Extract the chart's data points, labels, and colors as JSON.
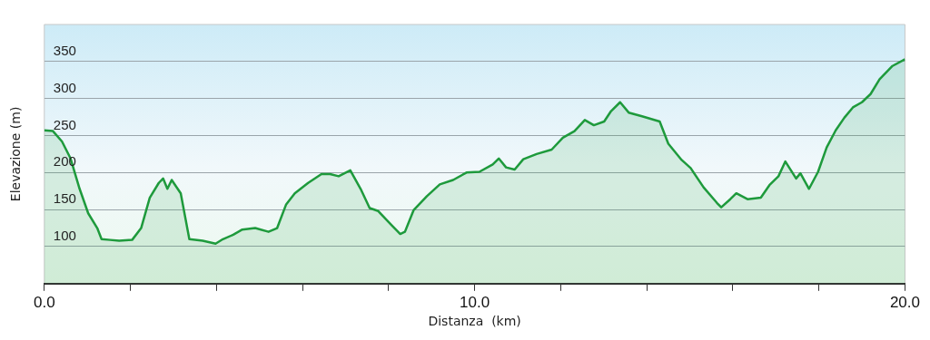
{
  "chart_data": {
    "type": "area",
    "xlabel": "Distanza  (km)",
    "ylabel": "Elevazione (m)",
    "x": [
      0,
      0.2,
      0.41,
      0.61,
      0.82,
      1.02,
      1.23,
      1.33,
      1.53,
      1.74,
      2.04,
      2.25,
      2.45,
      2.66,
      2.76,
      2.86,
      2.96,
      3.17,
      3.37,
      3.68,
      3.98,
      4.15,
      4.39,
      4.6,
      4.9,
      5.21,
      5.41,
      5.62,
      5.82,
      6.13,
      6.44,
      6.64,
      6.84,
      7.11,
      7.35,
      7.56,
      7.76,
      8.07,
      8.27,
      8.38,
      8.58,
      8.89,
      9.19,
      9.5,
      9.81,
      10.11,
      10.42,
      10.56,
      10.73,
      10.93,
      11.13,
      11.44,
      11.79,
      12.05,
      12.32,
      12.56,
      12.77,
      13.01,
      13.17,
      13.38,
      13.58,
      13.89,
      14.3,
      14.5,
      14.81,
      15.02,
      15.32,
      15.63,
      15.73,
      15.94,
      16.08,
      16.34,
      16.65,
      16.85,
      17.06,
      17.22,
      17.47,
      17.57,
      17.77,
      17.98,
      18.18,
      18.39,
      18.59,
      18.79,
      19.0,
      19.2,
      19.41,
      19.71,
      20.0
    ],
    "series": [
      {
        "color": "#1e9a3c",
        "values": [
          257,
          256,
          242,
          219,
          178,
          145,
          125,
          110,
          109,
          108,
          109,
          125,
          166,
          186,
          192,
          178,
          190,
          172,
          110,
          108,
          104,
          110,
          116,
          123,
          125,
          120,
          125,
          157,
          172,
          186,
          198,
          198,
          195,
          203,
          178,
          152,
          148,
          129,
          117,
          120,
          149,
          168,
          184,
          190,
          200,
          201,
          211,
          219,
          207,
          204,
          218,
          225,
          231,
          247,
          256,
          271,
          264,
          269,
          283,
          295,
          281,
          276,
          269,
          239,
          217,
          206,
          180,
          159,
          153,
          164,
          172,
          164,
          166,
          183,
          195,
          215,
          192,
          199,
          178,
          201,
          234,
          257,
          274,
          288,
          295,
          306,
          326,
          344,
          353
        ]
      }
    ],
    "xlim": [
      0,
      20
    ],
    "xticks": [
      {
        "value": 0,
        "label": "0.0"
      },
      {
        "value": 2,
        "label": null
      },
      {
        "value": 4,
        "label": null
      },
      {
        "value": 6,
        "label": null
      },
      {
        "value": 8,
        "label": null
      },
      {
        "value": 10,
        "label": "10.0"
      },
      {
        "value": 12,
        "label": null
      },
      {
        "value": 14,
        "label": null
      },
      {
        "value": 16,
        "label": null
      },
      {
        "value": 18,
        "label": null
      },
      {
        "value": 20,
        "label": "20.0"
      }
    ],
    "ylim": [
      50,
      400
    ],
    "yticks": [
      100,
      150,
      200,
      250,
      300,
      350
    ],
    "grid": "y",
    "legend": false,
    "marker": "none",
    "line_style": "solid"
  }
}
